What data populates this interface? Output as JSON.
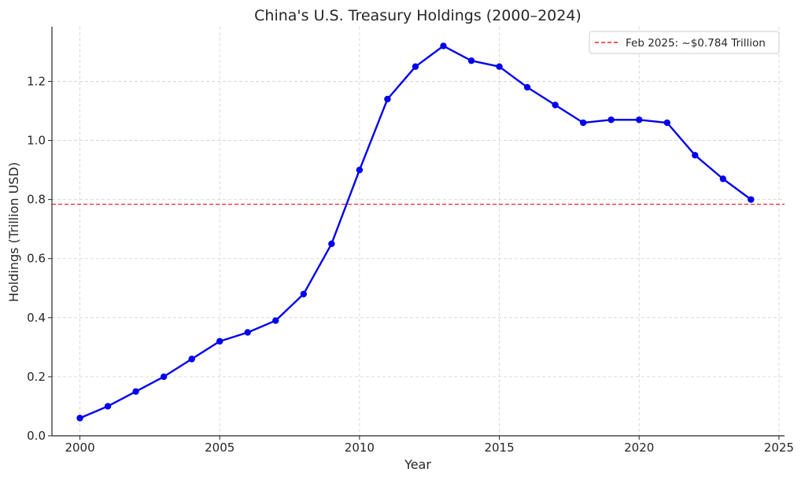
{
  "chart_data": {
    "type": "line",
    "title": "China's U.S. Treasury Holdings (2000–2024)",
    "xlabel": "Year",
    "ylabel": "Holdings (Trillion USD)",
    "xlim": [
      1999,
      2025.2
    ],
    "ylim": [
      0,
      1.385
    ],
    "x_ticks": [
      2000,
      2005,
      2010,
      2015,
      2020,
      2025
    ],
    "y_ticks": [
      0.0,
      0.2,
      0.4,
      0.6,
      0.8,
      1.0,
      1.2
    ],
    "y_tick_labels": [
      "0.0",
      "0.2",
      "0.4",
      "0.6",
      "0.8",
      "1.0",
      "1.2"
    ],
    "grid": true,
    "legend_position": "top-right",
    "series": [
      {
        "x": [
          2000,
          2001,
          2002,
          2003,
          2004,
          2005,
          2006,
          2007,
          2008,
          2009,
          2010,
          2011,
          2012,
          2013,
          2014,
          2015,
          2016,
          2017,
          2018,
          2019,
          2020,
          2021,
          2022,
          2023,
          2024
        ],
        "values": [
          0.06,
          0.1,
          0.15,
          0.2,
          0.26,
          0.32,
          0.35,
          0.39,
          0.48,
          0.65,
          0.9,
          1.14,
          1.25,
          1.32,
          1.27,
          1.25,
          1.18,
          1.12,
          1.06,
          1.07,
          1.07,
          1.06,
          0.95,
          0.87,
          0.8
        ],
        "color": "#0000ee",
        "marker": "circle"
      }
    ],
    "reference_lines": [
      {
        "orientation": "horizontal",
        "value": 0.784,
        "label": "Feb 2025: ~$0.784 Trillion",
        "color": "#e8262a",
        "style": "dashed"
      }
    ]
  }
}
